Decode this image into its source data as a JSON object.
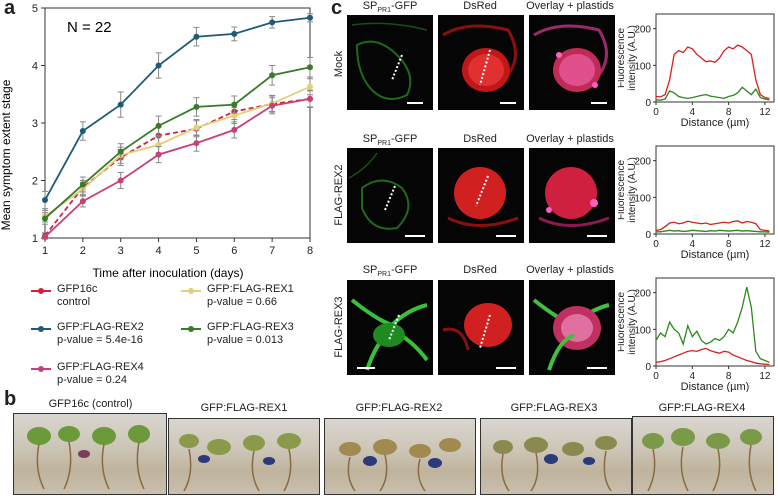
{
  "panel_a": {
    "letter": "a",
    "annotation": "N = 22",
    "legend": [
      {
        "line1": "GFP16c",
        "line2": "control",
        "color": "#d6203e"
      },
      {
        "line1": "GFP:FLAG-REX1",
        "line2": "p-value = 0.66",
        "color": "#e3cf7a"
      },
      {
        "line1": "GFP:FLAG-REX2",
        "line2": "p-value = 5.4e-16",
        "color": "#1f5b76"
      },
      {
        "line1": "GFP:FLAG-REX3",
        "line2": "p-value = 0.013",
        "color": "#3a7a2a"
      },
      {
        "line1": "GFP:FLAG-REX4",
        "line2": "p-value = 0.24",
        "color": "#c8407a"
      }
    ]
  },
  "chart_data": [
    {
      "type": "line",
      "xlabel": "Time after inoculation (days)",
      "ylabel": "Mean symptom extent stage",
      "x": [
        1,
        2,
        3,
        4,
        5,
        6,
        7,
        8
      ],
      "xlim": [
        1,
        8
      ],
      "ylim": [
        1,
        5
      ],
      "xticks": [
        "1",
        "2",
        "3",
        "4",
        "5",
        "6",
        "7",
        "8"
      ],
      "yticks": [
        "1",
        "2",
        "3",
        "4",
        "5"
      ],
      "series": [
        {
          "name": "GFP16c",
          "color": "#d6203e",
          "dashed": true,
          "values": [
            1.04,
            1.88,
            2.4,
            2.78,
            2.9,
            3.2,
            3.33,
            3.42
          ],
          "err": [
            0.05,
            0.12,
            0.14,
            0.15,
            0.14,
            0.14,
            0.14,
            0.14
          ]
        },
        {
          "name": "GFP:FLAG-REX1",
          "color": "#e3cf7a",
          "dashed": false,
          "values": [
            1.38,
            1.85,
            2.44,
            2.62,
            2.92,
            3.13,
            3.34,
            3.63
          ],
          "err": [
            0.1,
            0.12,
            0.14,
            0.14,
            0.14,
            0.14,
            0.14,
            0.14
          ]
        },
        {
          "name": "GFP:FLAG-REX2",
          "color": "#1f5b76",
          "dashed": false,
          "values": [
            1.66,
            2.86,
            3.32,
            4.0,
            4.5,
            4.55,
            4.75,
            4.83
          ],
          "err": [
            0.15,
            0.16,
            0.22,
            0.22,
            0.16,
            0.12,
            0.1,
            0.07
          ]
        },
        {
          "name": "GFP:FLAG-REX3",
          "color": "#3a7a2a",
          "dashed": false,
          "values": [
            1.34,
            1.93,
            2.5,
            2.95,
            3.28,
            3.32,
            3.83,
            3.97
          ],
          "err": [
            0.1,
            0.13,
            0.14,
            0.17,
            0.16,
            0.15,
            0.17,
            0.17
          ]
        },
        {
          "name": "GFP:FLAG-REX4",
          "color": "#c8407a",
          "dashed": false,
          "values": [
            1.02,
            1.64,
            2.0,
            2.45,
            2.65,
            2.88,
            3.3,
            3.42
          ],
          "err": [
            0.04,
            0.1,
            0.14,
            0.14,
            0.14,
            0.14,
            0.14,
            0.15
          ]
        }
      ]
    },
    {
      "type": "line",
      "xlabel": "Distance (µm)",
      "ylabel": "Fluorescence intensity (A.U.)",
      "xlim": [
        0,
        13
      ],
      "ylim": [
        0,
        240
      ],
      "xticks": [
        "0",
        "4",
        "8",
        "12"
      ],
      "yticks": [
        "0",
        "100",
        "200"
      ],
      "series": [
        {
          "name": "",
          "color": "#d62020",
          "x": [
            0,
            0.5,
            1,
            1.5,
            2,
            2.5,
            3,
            3.5,
            4,
            4.5,
            5,
            5.5,
            6,
            6.5,
            7,
            7.5,
            8,
            8.5,
            9,
            9.5,
            10,
            10.5,
            11,
            11.5,
            12,
            12.5
          ],
          "values": [
            15,
            14,
            20,
            60,
            130,
            140,
            135,
            150,
            145,
            130,
            120,
            110,
            112,
            108,
            120,
            140,
            150,
            145,
            155,
            150,
            140,
            130,
            60,
            20,
            12,
            10
          ]
        },
        {
          "name": "",
          "color": "#2a8a1a",
          "x": [
            0,
            0.5,
            1,
            1.5,
            2,
            2.5,
            3,
            3.5,
            4,
            4.5,
            5,
            5.5,
            6,
            6.5,
            7,
            7.5,
            8,
            8.5,
            9,
            9.5,
            10,
            10.5,
            11,
            11.5,
            12,
            12.5
          ],
          "values": [
            6,
            5,
            8,
            30,
            25,
            15,
            12,
            10,
            12,
            15,
            18,
            20,
            16,
            14,
            12,
            10,
            15,
            18,
            25,
            40,
            30,
            20,
            35,
            12,
            8,
            6
          ]
        }
      ]
    },
    {
      "type": "line",
      "xlabel": "Distance (µm)",
      "ylabel": "Fluorescence intensity (A.U.)",
      "xlim": [
        0,
        13
      ],
      "ylim": [
        0,
        240
      ],
      "xticks": [
        "0",
        "4",
        "8",
        "12"
      ],
      "yticks": [
        "0",
        "100",
        "200"
      ],
      "series": [
        {
          "name": "",
          "color": "#d62020",
          "x": [
            0,
            0.5,
            1,
            1.5,
            2,
            2.5,
            3,
            3.5,
            4,
            4.5,
            5,
            5.5,
            6,
            6.5,
            7,
            7.5,
            8,
            8.5,
            9,
            9.5,
            10,
            10.5,
            11,
            11.5,
            12,
            12.5
          ],
          "values": [
            10,
            12,
            20,
            30,
            32,
            28,
            30,
            35,
            32,
            30,
            28,
            30,
            26,
            28,
            30,
            32,
            30,
            34,
            36,
            30,
            34,
            32,
            28,
            12,
            10,
            8
          ]
        },
        {
          "name": "",
          "color": "#2a8a1a",
          "x": [
            0,
            0.5,
            1,
            1.5,
            2,
            2.5,
            3,
            3.5,
            4,
            4.5,
            5,
            5.5,
            6,
            6.5,
            7,
            7.5,
            8,
            8.5,
            9,
            9.5,
            10,
            10.5,
            11,
            11.5,
            12,
            12.5
          ],
          "values": [
            6,
            6,
            8,
            10,
            8,
            9,
            7,
            8,
            10,
            9,
            8,
            7,
            9,
            8,
            10,
            9,
            8,
            9,
            10,
            8,
            9,
            8,
            7,
            6,
            6,
            5
          ]
        }
      ]
    },
    {
      "type": "line",
      "xlabel": "Distance (µm)",
      "ylabel": "Fluorescence intensity (A.U.)",
      "xlim": [
        0,
        13
      ],
      "ylim": [
        0,
        240
      ],
      "xticks": [
        "0",
        "4",
        "8",
        "12"
      ],
      "yticks": [
        "0",
        "100",
        "200"
      ],
      "series": [
        {
          "name": "",
          "color": "#2a8a1a",
          "x": [
            0,
            0.5,
            1,
            1.5,
            2,
            2.5,
            3,
            3.5,
            4,
            4.5,
            5,
            5.5,
            6,
            6.5,
            7,
            7.5,
            8,
            8.5,
            9,
            9.5,
            10,
            10.5,
            11,
            11.5,
            12,
            12.5
          ],
          "values": [
            70,
            90,
            80,
            120,
            100,
            90,
            60,
            110,
            80,
            95,
            70,
            60,
            65,
            75,
            70,
            80,
            100,
            90,
            120,
            160,
            215,
            160,
            40,
            20,
            15,
            10
          ]
        },
        {
          "name": "",
          "color": "#d62020",
          "x": [
            0,
            0.5,
            1,
            1.5,
            2,
            2.5,
            3,
            3.5,
            4,
            4.5,
            5,
            5.5,
            6,
            6.5,
            7,
            7.5,
            8,
            8.5,
            9,
            9.5,
            10,
            10.5,
            11,
            11.5,
            12,
            12.5
          ],
          "values": [
            10,
            12,
            15,
            20,
            25,
            30,
            35,
            40,
            42,
            40,
            45,
            48,
            42,
            38,
            35,
            40,
            38,
            30,
            25,
            20,
            15,
            12,
            8,
            6,
            5,
            4
          ]
        }
      ]
    }
  ],
  "panel_c": {
    "letter": "c",
    "col_labels": {
      "sp_main": "SP",
      "sp_sub": "PR1",
      "sp_tail": "-GFP",
      "dsred": "DsRed",
      "overlay": "Overlay + plastids"
    },
    "rows": [
      "Mock",
      "FLAG-REX2",
      "FLAG-REX3"
    ],
    "graph_xlabel": "Distance (µm)",
    "graph_ylabel_line1": "Fluorescence",
    "graph_ylabel_line2": "intensity (A.U.)"
  },
  "panel_b": {
    "letter": "b",
    "photos": [
      "GFP16c (control)",
      "GFP:FLAG-REX1",
      "GFP:FLAG-REX2",
      "GFP:FLAG-REX3",
      "GFP:FLAG-REX4"
    ]
  }
}
